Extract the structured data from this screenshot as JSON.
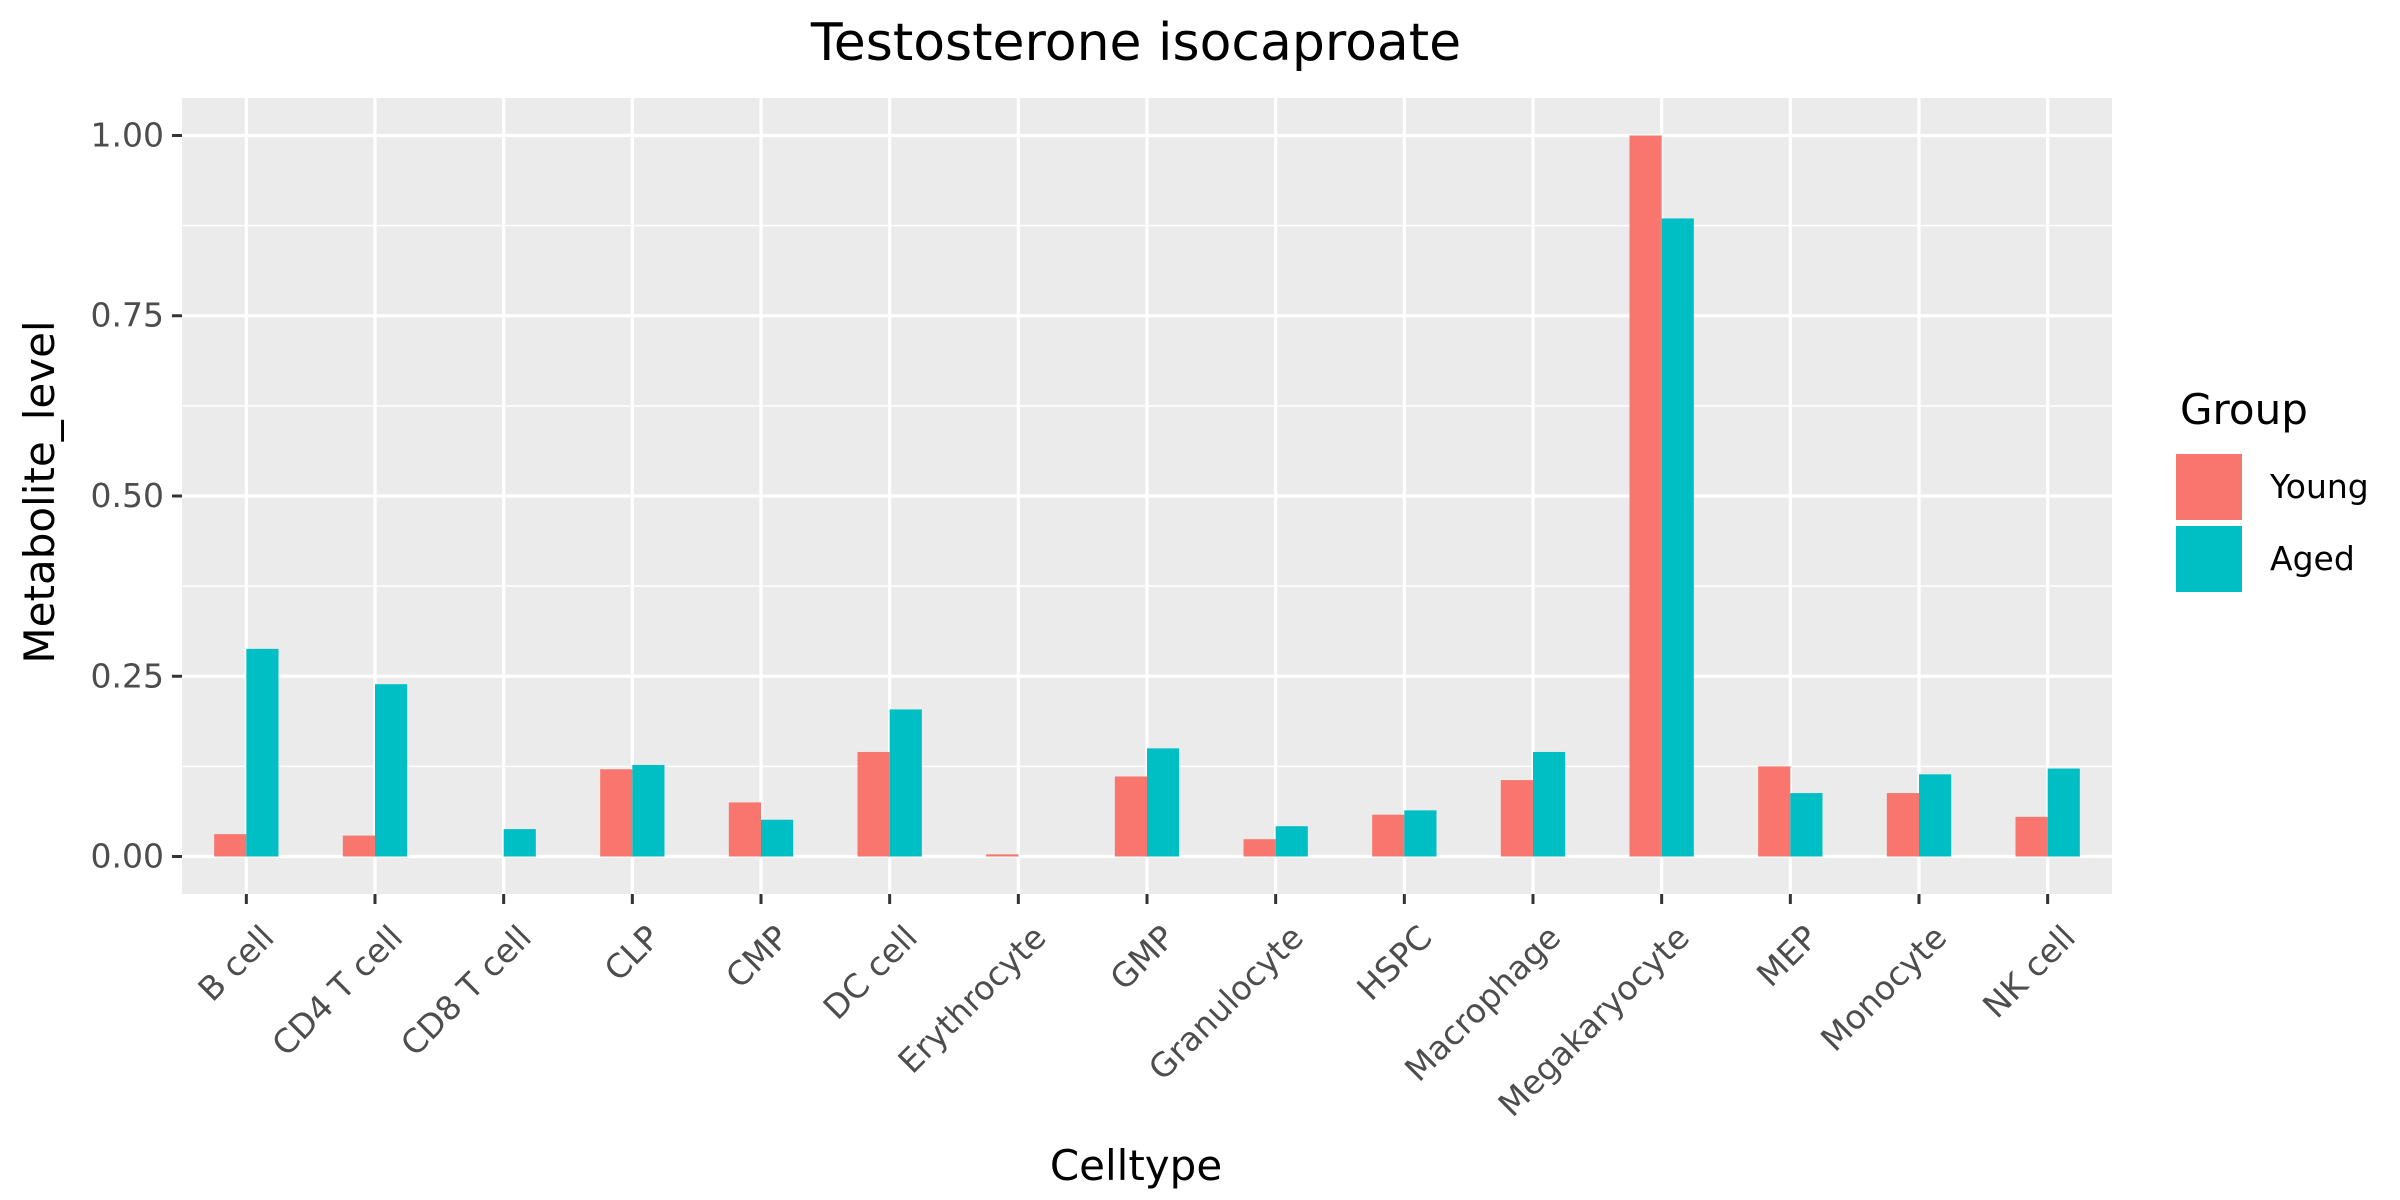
{
  "chart_data": {
    "type": "bar",
    "title": "Testosterone isocaproate",
    "xlabel": "Celltype",
    "ylabel": "Metabolite_level",
    "categories": [
      "B cell",
      "CD4 T cell",
      "CD8 T cell",
      "CLP",
      "CMP",
      "DC cell",
      "Erythrocyte",
      "GMP",
      "Granulocyte",
      "HSPC",
      "Macrophage",
      "Megakaryocyte",
      "MEP",
      "Monocyte",
      "NK cell"
    ],
    "series": [
      {
        "name": "Young",
        "color": "#F8766D",
        "values": [
          0.031,
          0.029,
          0.0,
          0.121,
          0.075,
          0.145,
          0.003,
          0.111,
          0.024,
          0.058,
          0.106,
          1.0,
          0.125,
          0.088,
          0.055
        ]
      },
      {
        "name": "Aged",
        "color": "#00BFC4",
        "values": [
          0.288,
          0.239,
          0.038,
          0.127,
          0.051,
          0.204,
          0.0,
          0.15,
          0.042,
          0.064,
          0.145,
          0.885,
          0.088,
          0.114,
          0.122
        ]
      }
    ],
    "ylim": [
      -0.052,
      1.052
    ],
    "yticks": [
      0.0,
      0.25,
      0.5,
      0.75,
      1.0
    ],
    "ytick_labels": [
      "0.00",
      "0.25",
      "0.50",
      "0.75",
      "1.00"
    ],
    "legend_title": "Group",
    "legend_position": "right",
    "grid": true,
    "panel_color": "#EBEBEB",
    "grid_color": "#FFFFFF"
  }
}
